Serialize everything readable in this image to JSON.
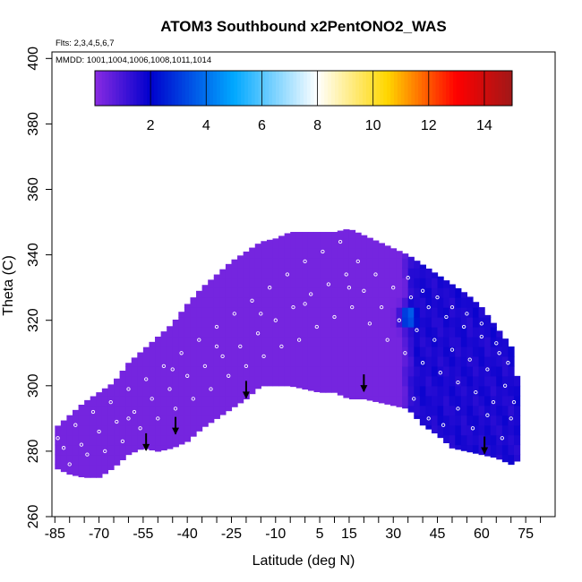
{
  "chart_data": {
    "type": "heatmap",
    "title": "ATOM3 Southbound x2PentONO2_WAS",
    "subtitle_flights": "Flts: 2,3,4,5,6,7",
    "subtitle_dates": "MMDD: 1001,1004,1006,1008,1011,1014",
    "xlabel": "Latitude (deg N)",
    "ylabel": "Theta (C)",
    "xlim": [
      -86,
      85
    ],
    "ylim": [
      260,
      402
    ],
    "x_ticks": [
      -85,
      -70,
      -55,
      -40,
      -25,
      -10,
      5,
      15,
      30,
      45,
      60,
      75
    ],
    "x_minor_ticks": [
      -80,
      -75,
      -65,
      -60,
      -50,
      -45,
      -35,
      -30,
      -20,
      -15,
      -5,
      0,
      10,
      20,
      25,
      35,
      40,
      50,
      55,
      65,
      70,
      80
    ],
    "y_ticks": [
      260,
      280,
      300,
      320,
      340,
      360,
      380,
      400
    ],
    "colorbar": {
      "range": [
        0,
        15
      ],
      "ticks": [
        2,
        4,
        6,
        8,
        10,
        12,
        14
      ],
      "colors": [
        "#8a2be2",
        "#0000cd",
        "#00a8ff",
        "#ffffff",
        "#ffd700",
        "#ff0000",
        "#a01818"
      ]
    },
    "field": {
      "background_value": 0.3,
      "high_region": {
        "lat_range": [
          33,
          72
        ],
        "value": 1.6
      },
      "local_max": {
        "lat": 35,
        "theta": 321,
        "value": 4.5
      }
    },
    "envelope": {
      "lat": [
        -85,
        -80,
        -75,
        -70,
        -65,
        -60,
        -55,
        -50,
        -45,
        -40,
        -35,
        -30,
        -25,
        -20,
        -15,
        -10,
        -5,
        0,
        5,
        10,
        15,
        20,
        25,
        30,
        35,
        40,
        45,
        50,
        55,
        60,
        65,
        70,
        72
      ],
      "top": [
        287,
        291,
        295,
        298,
        301,
        307,
        311,
        315,
        319,
        325,
        330,
        334,
        338,
        341,
        344,
        345,
        347,
        347,
        347,
        347,
        348,
        346,
        344,
        342,
        340,
        337,
        334,
        331,
        328,
        324,
        318,
        312,
        303
      ],
      "bottom": [
        275,
        273,
        272,
        272,
        275,
        279,
        281,
        280,
        281,
        283,
        287,
        290,
        293,
        296,
        300,
        300,
        300,
        299,
        298,
        298,
        296,
        296,
        295,
        294,
        293,
        288,
        285,
        281,
        280,
        279,
        278,
        276,
        277
      ]
    },
    "tropopause_arrows": [
      {
        "lat": -54,
        "theta": 280
      },
      {
        "lat": -44,
        "theta": 285
      },
      {
        "lat": -20,
        "theta": 296
      },
      {
        "lat": 20,
        "theta": 298
      },
      {
        "lat": 61,
        "theta": 279
      }
    ],
    "samples": [
      [
        -84,
        284
      ],
      [
        -82,
        281
      ],
      [
        -80,
        276
      ],
      [
        -78,
        288
      ],
      [
        -76,
        282
      ],
      [
        -74,
        279
      ],
      [
        -72,
        292
      ],
      [
        -70,
        286
      ],
      [
        -68,
        280
      ],
      [
        -66,
        295
      ],
      [
        -64,
        289
      ],
      [
        -62,
        283
      ],
      [
        -60,
        299
      ],
      [
        -58,
        292
      ],
      [
        -56,
        287
      ],
      [
        -54,
        302
      ],
      [
        -52,
        296
      ],
      [
        -50,
        290
      ],
      [
        -48,
        306
      ],
      [
        -46,
        299
      ],
      [
        -44,
        293
      ],
      [
        -42,
        310
      ],
      [
        -40,
        303
      ],
      [
        -38,
        296
      ],
      [
        -36,
        314
      ],
      [
        -34,
        306
      ],
      [
        -32,
        299
      ],
      [
        -30,
        318
      ],
      [
        -28,
        309
      ],
      [
        -26,
        303
      ],
      [
        -24,
        322
      ],
      [
        -22,
        312
      ],
      [
        -20,
        306
      ],
      [
        -18,
        326
      ],
      [
        -16,
        316
      ],
      [
        -14,
        309
      ],
      [
        -12,
        330
      ],
      [
        -10,
        320
      ],
      [
        -8,
        312
      ],
      [
        -6,
        334
      ],
      [
        -4,
        324
      ],
      [
        -2,
        314
      ],
      [
        0,
        338
      ],
      [
        2,
        328
      ],
      [
        4,
        318
      ],
      [
        6,
        341
      ],
      [
        8,
        331
      ],
      [
        10,
        321
      ],
      [
        12,
        344
      ],
      [
        14,
        334
      ],
      [
        16,
        324
      ],
      [
        18,
        338
      ],
      [
        20,
        329
      ],
      [
        22,
        319
      ],
      [
        24,
        334
      ],
      [
        26,
        324
      ],
      [
        28,
        314
      ],
      [
        30,
        330
      ],
      [
        32,
        320
      ],
      [
        34,
        310
      ],
      [
        36,
        327
      ],
      [
        38,
        317
      ],
      [
        40,
        307
      ],
      [
        42,
        324
      ],
      [
        44,
        314
      ],
      [
        46,
        304
      ],
      [
        48,
        321
      ],
      [
        50,
        311
      ],
      [
        52,
        301
      ],
      [
        54,
        318
      ],
      [
        56,
        308
      ],
      [
        58,
        298
      ],
      [
        60,
        315
      ],
      [
        62,
        305
      ],
      [
        64,
        295
      ],
      [
        66,
        310
      ],
      [
        68,
        300
      ],
      [
        70,
        290
      ],
      [
        37,
        296
      ],
      [
        42,
        290
      ],
      [
        47,
        288
      ],
      [
        52,
        293
      ],
      [
        57,
        287
      ],
      [
        62,
        291
      ],
      [
        67,
        284
      ],
      [
        71,
        295
      ],
      [
        35,
        333
      ],
      [
        40,
        329
      ],
      [
        45,
        327
      ],
      [
        50,
        324
      ],
      [
        55,
        322
      ],
      [
        60,
        319
      ],
      [
        65,
        313
      ],
      [
        69,
        307
      ],
      [
        -60,
        290
      ],
      [
        -45,
        305
      ],
      [
        -30,
        312
      ],
      [
        -15,
        322
      ],
      [
        0,
        325
      ],
      [
        15,
        330
      ]
    ]
  }
}
